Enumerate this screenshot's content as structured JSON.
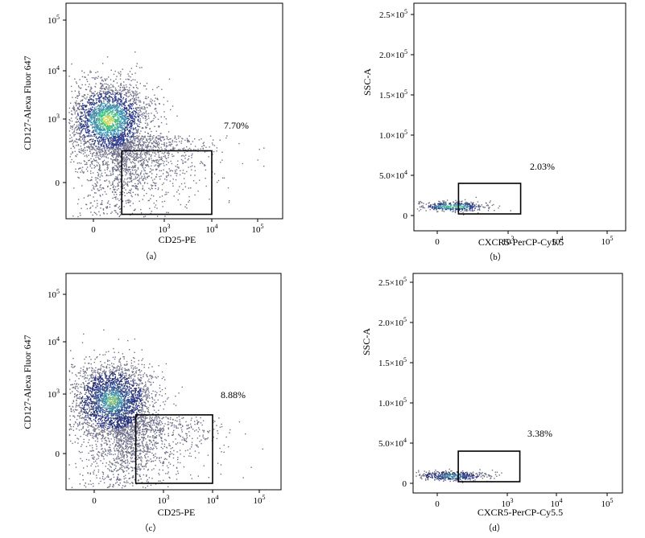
{
  "chart_data": [
    {
      "id": "a",
      "type": "scatter",
      "caption": "（a）",
      "xlabel": "CD25-PE",
      "ylabel": "CD127-Alexa Fluor 647",
      "x_scale": "biexponential",
      "y_scale": "biexponential",
      "x_ticks": [
        {
          "value": 0,
          "label": "0"
        },
        {
          "value": 1000,
          "label": "10",
          "exp": "3"
        },
        {
          "value": 10000,
          "label": "10",
          "exp": "4"
        },
        {
          "value": 100000,
          "label": "10",
          "exp": "5"
        }
      ],
      "y_ticks": [
        {
          "value": 0,
          "label": "0"
        },
        {
          "value": 1000,
          "label": "10",
          "exp": "3"
        },
        {
          "value": 10000,
          "label": "10",
          "exp": "4"
        },
        {
          "value": 100000,
          "label": "10",
          "exp": "5"
        }
      ],
      "gate": {
        "x_range": [
          400,
          10000
        ],
        "y_range": [
          -500,
          500
        ],
        "percent": "7.70%"
      },
      "population": {
        "center": [
          200,
          1000
        ],
        "color_scale": [
          "#2c3b8c",
          "#3a8fb0",
          "#3fbf7f",
          "#c8d84a"
        ]
      }
    },
    {
      "id": "b",
      "type": "scatter",
      "caption": "（b）",
      "xlabel": "CXCR5-PerCP-Cy5.5",
      "ylabel": "SSC-A",
      "x_scale": "biexponential",
      "y_scale": "linear",
      "x_ticks": [
        {
          "value": 0,
          "label": "0"
        },
        {
          "value": 1000,
          "label": "10",
          "exp": "3"
        },
        {
          "value": 10000,
          "label": "10",
          "exp": "4"
        },
        {
          "value": 100000,
          "label": "10",
          "exp": "5"
        }
      ],
      "y_ticks": [
        {
          "value": 0,
          "label": "0"
        },
        {
          "value": 50000,
          "label": "5.0×10",
          "exp": "4"
        },
        {
          "value": 100000,
          "label": "1.0×10",
          "exp": "5"
        },
        {
          "value": 150000,
          "label": "1.5×10",
          "exp": "5"
        },
        {
          "value": 200000,
          "label": "2.0×10",
          "exp": "5"
        },
        {
          "value": 250000,
          "label": "2.5×10",
          "exp": "5"
        }
      ],
      "gate": {
        "x_range": [
          300,
          1800
        ],
        "y_range": [
          2000,
          40000
        ],
        "percent": "2.03%"
      },
      "population": {
        "center": [
          200,
          12000
        ],
        "color_scale": [
          "#2c3b8c",
          "#3a8fb0",
          "#3fbf7f"
        ]
      }
    },
    {
      "id": "c",
      "type": "scatter",
      "caption": "（c）",
      "xlabel": "CD25-PE",
      "ylabel": "CD127-Alexa Fluor 647",
      "x_scale": "biexponential",
      "y_scale": "biexponential",
      "x_ticks": [
        {
          "value": 0,
          "label": "0"
        },
        {
          "value": 1000,
          "label": "10",
          "exp": "3"
        },
        {
          "value": 10000,
          "label": "10",
          "exp": "4"
        },
        {
          "value": 100000,
          "label": "10",
          "exp": "5"
        }
      ],
      "y_ticks": [
        {
          "value": 0,
          "label": "0"
        },
        {
          "value": 1000,
          "label": "10",
          "exp": "3"
        },
        {
          "value": 10000,
          "label": "10",
          "exp": "4"
        },
        {
          "value": 100000,
          "label": "10",
          "exp": "5"
        }
      ],
      "gate": {
        "x_range": [
          600,
          10000
        ],
        "y_range": [
          -500,
          650
        ],
        "percent": "8.88%"
      },
      "population": {
        "center": [
          250,
          900
        ],
        "color_scale": [
          "#252f7a",
          "#34508f",
          "#3f8fa8",
          "#7cc07a"
        ]
      }
    },
    {
      "id": "d",
      "type": "scatter",
      "caption": "（d）",
      "xlabel": "CXCR5-PerCP-Cy5.5",
      "ylabel": "SSC-A",
      "x_scale": "biexponential",
      "y_scale": "linear",
      "x_ticks": [
        {
          "value": 0,
          "label": "0"
        },
        {
          "value": 1000,
          "label": "10",
          "exp": "3"
        },
        {
          "value": 10000,
          "label": "10",
          "exp": "4"
        },
        {
          "value": 100000,
          "label": "10",
          "exp": "5"
        }
      ],
      "y_ticks": [
        {
          "value": 0,
          "label": "0"
        },
        {
          "value": 50000,
          "label": "5.0×10",
          "exp": "4"
        },
        {
          "value": 100000,
          "label": "1.0×10",
          "exp": "5"
        },
        {
          "value": 150000,
          "label": "1.5×10",
          "exp": "5"
        },
        {
          "value": 200000,
          "label": "2.0×10",
          "exp": "5"
        },
        {
          "value": 250000,
          "label": "2.5×10",
          "exp": "5"
        }
      ],
      "gate": {
        "x_range": [
          300,
          1800
        ],
        "y_range": [
          2000,
          40000
        ],
        "percent": "3.38%"
      },
      "population": {
        "center": [
          200,
          10000
        ],
        "color_scale": [
          "#252f7a",
          "#34508f",
          "#3f8fa8"
        ]
      }
    }
  ]
}
